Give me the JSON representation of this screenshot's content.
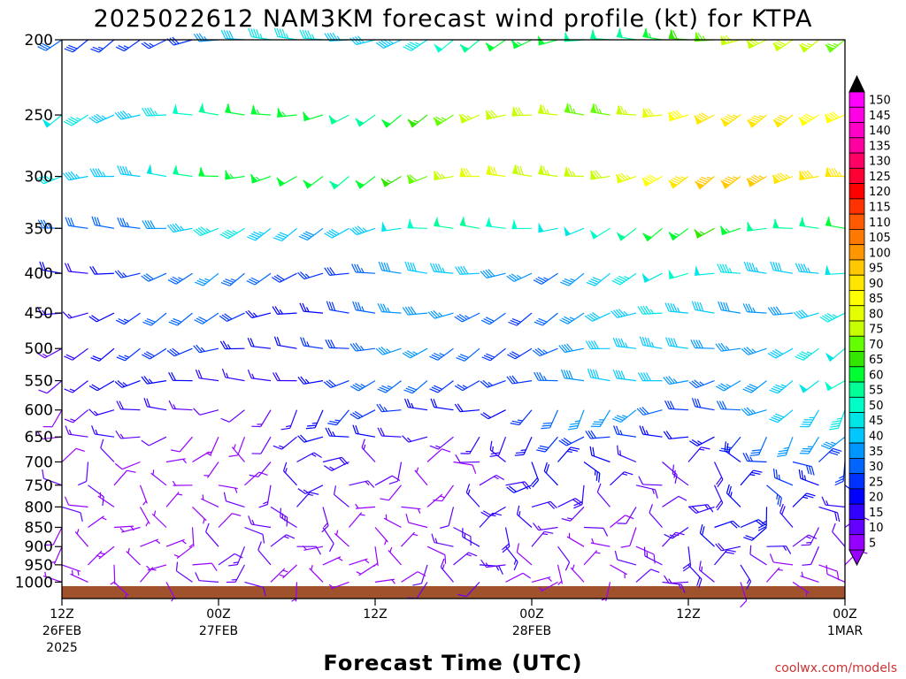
{
  "chart_data": {
    "type": "wind-barb-profile",
    "title": "2025022612 NAM3KM forecast wind profile (kt) for KTPA",
    "xlabel": "Forecast Time (UTC)",
    "ylabel": "",
    "y_levels_hpa": [
      200,
      250,
      300,
      350,
      400,
      450,
      500,
      550,
      600,
      650,
      700,
      750,
      800,
      850,
      900,
      950,
      1000
    ],
    "y_range_hpa": [
      200,
      1050
    ],
    "x_ticks": [
      {
        "hour": 0,
        "line1": "12Z",
        "line2": "26FEB",
        "line3": "2025"
      },
      {
        "hour": 12,
        "line1": "00Z",
        "line2": "27FEB",
        "line3": ""
      },
      {
        "hour": 24,
        "line1": "12Z",
        "line2": "",
        "line3": ""
      },
      {
        "hour": 36,
        "line1": "00Z",
        "line2": "28FEB",
        "line3": ""
      },
      {
        "hour": 48,
        "line1": "12Z",
        "line2": "",
        "line3": ""
      },
      {
        "hour": 60,
        "line1": "00Z",
        "line2": "1MAR",
        "line3": ""
      }
    ],
    "x_range_hours": [
      0,
      60
    ],
    "barb_hours_step": 2,
    "speed_profile_kt": {
      "200": [
        25,
        80
      ],
      "250": [
        45,
        95
      ],
      "300": [
        45,
        100
      ],
      "350": [
        35,
        65
      ],
      "400": [
        25,
        50
      ],
      "450": [
        22,
        45
      ],
      "500": [
        20,
        45
      ],
      "550": [
        15,
        45
      ],
      "600": [
        10,
        40
      ],
      "650": [
        8,
        32
      ],
      "700": [
        5,
        25
      ],
      "750": [
        5,
        22
      ],
      "800": [
        5,
        20
      ],
      "850": [
        5,
        18
      ],
      "900": [
        5,
        16
      ],
      "950": [
        5,
        14
      ],
      "1000": [
        5,
        10
      ]
    },
    "colorbar": {
      "labels": [
        "150",
        "145",
        "140",
        "135",
        "130",
        "125",
        "120",
        "115",
        "110",
        "105",
        "100",
        "95",
        "90",
        "85",
        "80",
        "75",
        "70",
        "65",
        "60",
        "55",
        "50",
        "45",
        "40",
        "35",
        "30",
        "25",
        "20",
        "15",
        "10",
        "5"
      ],
      "colors": [
        "#ff00ff",
        "#ff00e6",
        "#ff00c8",
        "#ff00a0",
        "#ff0064",
        "#ff0032",
        "#ff0000",
        "#ff3200",
        "#ff5a00",
        "#ff7800",
        "#ff9600",
        "#ffc800",
        "#ffe600",
        "#ffff00",
        "#e6ff00",
        "#c8ff00",
        "#64ff00",
        "#32e600",
        "#00ff32",
        "#00ff96",
        "#00ffc8",
        "#00e6e6",
        "#00c8ff",
        "#0096ff",
        "#0064ff",
        "#0032ff",
        "#0000ff",
        "#3200ff",
        "#6400ff",
        "#9600ff"
      ],
      "top_cap_color": "#000000",
      "bottom_cap_color": "#9600ff"
    },
    "ground_color": "#a0522d",
    "grid": false,
    "legend_placement": "right"
  },
  "credit": "coolwx.com/models",
  "credit_color": "#cc3333"
}
